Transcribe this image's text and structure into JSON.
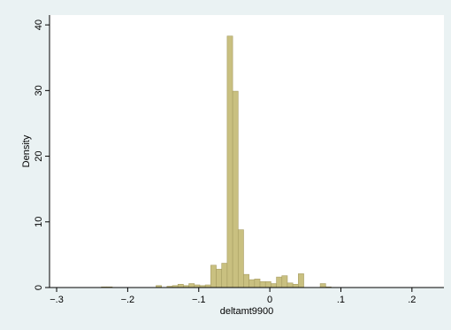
{
  "chart_data": {
    "type": "bar",
    "xlabel": "deltamt9900",
    "ylabel": "Density",
    "xlim": [
      -0.31,
      0.245
    ],
    "ylim": [
      0,
      41.5
    ],
    "x_ticks": [
      -0.3,
      -0.2,
      -0.1,
      0,
      0.1,
      0.2
    ],
    "x_tick_labels": [
      "−.3",
      "−.2",
      "−.1",
      "0",
      ".1",
      ".2"
    ],
    "y_ticks": [
      0,
      10,
      20,
      30,
      40
    ],
    "y_tick_labels": [
      "0",
      "10",
      "20",
      "30",
      "40"
    ],
    "grid": false,
    "bar_color": "#c9c080",
    "bar_edge_color": "#a79d62",
    "plot_background": "#ffffff",
    "outer_background": "#eaf2f3",
    "bin_width": 0.0077,
    "bin_start": -0.291,
    "values": [
      0,
      0,
      0,
      0,
      0,
      0,
      0,
      0.1,
      0.1,
      0,
      0,
      0,
      0,
      0,
      0,
      0,
      0,
      0.3,
      0,
      0.2,
      0.3,
      0.5,
      0.3,
      0.6,
      0.4,
      0.3,
      0.4,
      3.4,
      2.8,
      3.7,
      38.3,
      29.9,
      8.8,
      2.0,
      1.2,
      1.3,
      0.9,
      0.9,
      0.6,
      1.6,
      1.8,
      0.7,
      0.5,
      2.1,
      0,
      0,
      0,
      0.6,
      0.1,
      0,
      0,
      0,
      0,
      0
    ]
  }
}
